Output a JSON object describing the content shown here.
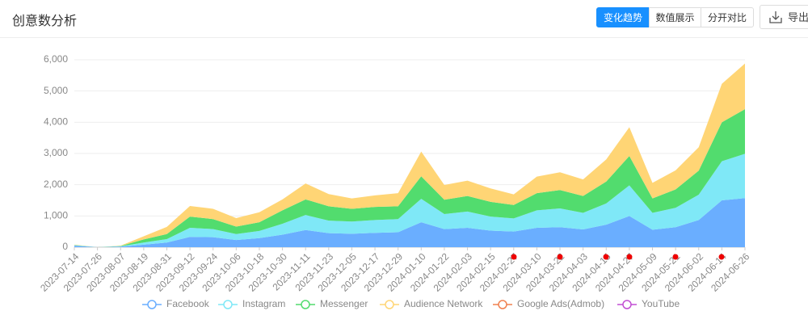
{
  "header": {
    "title": "创意数分析",
    "buttons": [
      "变化趋势",
      "数值展示",
      "分开对比"
    ],
    "export": "导出"
  },
  "chart_data": {
    "type": "stacked-area",
    "categories": [
      "2023-07-14",
      "2023-07-26",
      "2023-08-07",
      "2023-08-19",
      "2023-08-31",
      "2023-09-12",
      "2023-09-24",
      "2023-10-06",
      "2023-10-18",
      "2023-10-30",
      "2023-11-11",
      "2023-11-23",
      "2023-12-05",
      "2023-12-17",
      "2023-12-29",
      "2024-01-10",
      "2024-01-22",
      "2024-02-03",
      "2024-02-15",
      "2024-02-27",
      "2024-03-10",
      "2024-03-22",
      "2024-04-03",
      "2024-04-15",
      "2024-04-27",
      "2024-05-09",
      "2024-05-21",
      "2024-06-02",
      "2024-06-14",
      "2024-06-26"
    ],
    "series": [
      {
        "name": "Facebook",
        "color": "#6aaeff",
        "values": [
          50,
          0,
          20,
          80,
          150,
          330,
          320,
          230,
          290,
          400,
          550,
          450,
          430,
          460,
          480,
          800,
          580,
          620,
          530,
          500,
          620,
          640,
          570,
          720,
          1000,
          560,
          640,
          870,
          1500,
          1570
        ]
      },
      {
        "name": "Instagram",
        "color": "#7fe8f7",
        "values": [
          10,
          0,
          10,
          70,
          110,
          290,
          260,
          190,
          230,
          350,
          480,
          400,
          390,
          410,
          420,
          750,
          480,
          520,
          450,
          420,
          560,
          600,
          530,
          680,
          980,
          540,
          620,
          810,
          1250,
          1420
        ]
      },
      {
        "name": "Messenger",
        "color": "#52dc6e",
        "values": [
          10,
          0,
          10,
          100,
          160,
          360,
          320,
          240,
          280,
          430,
          500,
          460,
          410,
          420,
          410,
          720,
          460,
          500,
          470,
          430,
          550,
          590,
          540,
          700,
          940,
          460,
          590,
          770,
          1250,
          1430
        ]
      },
      {
        "name": "Audience Network",
        "color": "#ffd575",
        "values": [
          10,
          0,
          10,
          100,
          230,
          340,
          330,
          270,
          320,
          350,
          510,
          390,
          330,
          370,
          420,
          790,
          470,
          490,
          430,
          340,
          530,
          570,
          530,
          710,
          920,
          500,
          610,
          750,
          1230,
          1460
        ]
      },
      {
        "name": "Google Ads(Admob)",
        "color": "#f0804f",
        "values": [
          0,
          0,
          0,
          0,
          0,
          0,
          0,
          0,
          0,
          0,
          0,
          0,
          0,
          0,
          0,
          0,
          0,
          0,
          0,
          0,
          0,
          0,
          0,
          0,
          0,
          0,
          0,
          0,
          0,
          0
        ]
      },
      {
        "name": "YouTube",
        "color": "#c24fd3",
        "values": [
          0,
          0,
          0,
          0,
          0,
          0,
          0,
          0,
          0,
          0,
          0,
          0,
          0,
          0,
          0,
          0,
          0,
          0,
          0,
          0,
          0,
          0,
          0,
          0,
          0,
          0,
          0,
          0,
          0,
          0
        ]
      }
    ],
    "ylim": [
      0,
      6000
    ],
    "yticks": [
      0,
      {
        "value": 1000,
        "label": "1,000"
      },
      {
        "value": 2000,
        "label": "2,000"
      },
      {
        "value": 3000,
        "label": "3,000"
      },
      {
        "value": 4000,
        "label": "4,000"
      },
      {
        "value": 5000,
        "label": "5,000"
      },
      {
        "value": 6000,
        "label": "6,000"
      }
    ],
    "grid": true
  }
}
